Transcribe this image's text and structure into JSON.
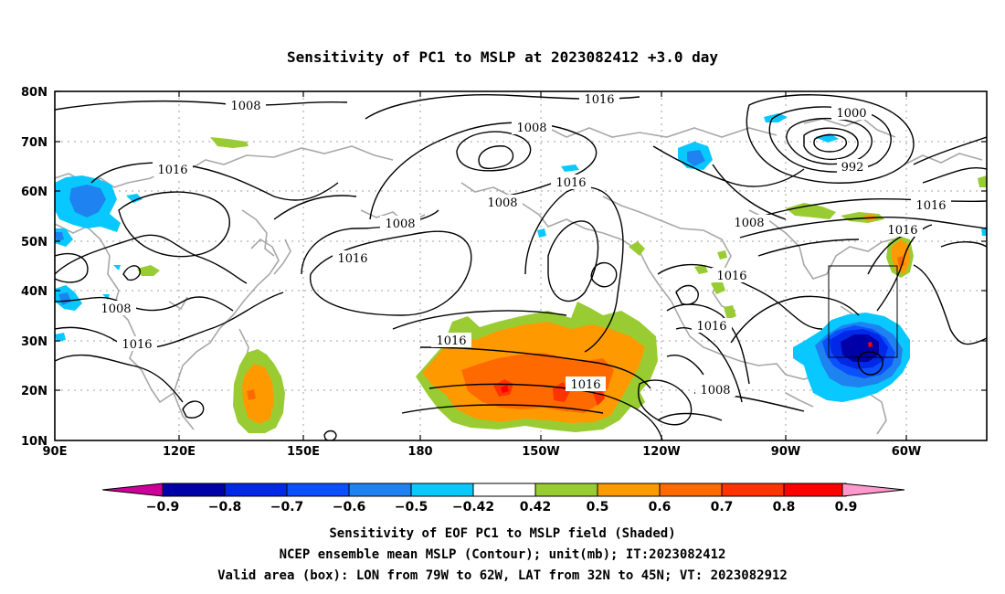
{
  "title": "Sensitivity of PC1 to MSLP at 2023082412 +3.0 day",
  "lat_labels": [
    "80N",
    "70N",
    "60N",
    "50N",
    "40N",
    "30N",
    "20N",
    "10N"
  ],
  "lon_labels": [
    "90E",
    "120E",
    "150E",
    "180",
    "150W",
    "120W",
    "90W",
    "60W"
  ],
  "contour_labels": [
    "1008",
    "1016",
    "1016",
    "1008",
    "1016",
    "1008",
    "1016",
    "1000",
    "992",
    "1016",
    "1008",
    "1016",
    "1016",
    "1008",
    "1008",
    "1016",
    "1016",
    "1016",
    "1008",
    "1016"
  ],
  "colorbar": {
    "labels": [
      "-0.9",
      "-0.8",
      "-0.7",
      "-0.6",
      "-0.5",
      "-0.42",
      "0.42",
      "0.5",
      "0.6",
      "0.7",
      "0.8",
      "0.9"
    ],
    "colors": [
      "#0000a8",
      "#0028e6",
      "#0a50ff",
      "#1e82f0",
      "#08c8ff",
      "#ffffff",
      "#99cc33",
      "#ff9900",
      "#ff6a00",
      "#ff3300",
      "#ff0000"
    ],
    "left_tip_color": "#cc0099",
    "right_tip_color": "#ff99cc"
  },
  "valid_box": {
    "lon_west": -79,
    "lon_east": -62,
    "lat_south": 32,
    "lat_north": 45
  },
  "captions": [
    "Sensitivity of EOF PC1 to MSLP field (Shaded)",
    "NCEP ensemble mean MSLP (Contour); unit(mb); IT:2023082412",
    "Valid area (box): LON from 79W to 62W, LAT from 32N to 45N; VT: 2023082912"
  ]
}
